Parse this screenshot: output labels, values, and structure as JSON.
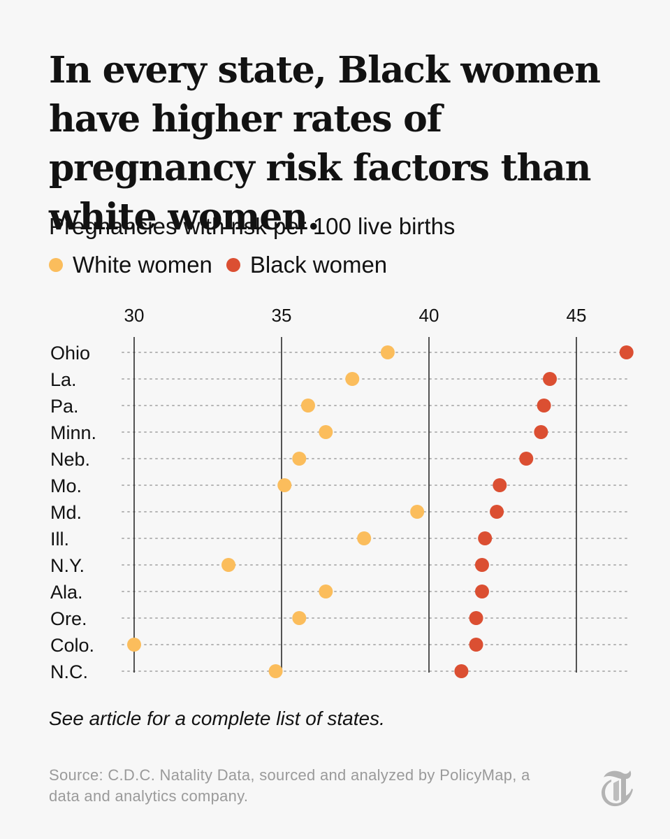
{
  "title": "In every state, Black women have higher rates of pregnancy risk factors than white women.",
  "subtitle": "Pregnancies with risk per 100 live births",
  "legend": {
    "white_label": "White women",
    "black_label": "Black women"
  },
  "colors": {
    "white": "#fbbd5c",
    "black": "#db4f32",
    "gridline": "#2a2a2a",
    "dotted": "#b5b5b5"
  },
  "footnote": "See article for a complete list of states.",
  "source": "Source: C.D.C. Natality Data, sourced and analyzed by PolicyMap, a data and analytics company.",
  "logo_icon": "nyt-logo-icon",
  "chart_data": {
    "type": "dot",
    "title": "Pregnancies with risk per 100 live births",
    "xlim": [
      30,
      47
    ],
    "ticks": [
      30,
      35,
      40,
      45
    ],
    "categories": [
      "Ohio",
      "La.",
      "Pa.",
      "Minn.",
      "Neb.",
      "Mo.",
      "Md.",
      "Ill.",
      "N.Y.",
      "Ala.",
      "Ore.",
      "Colo.",
      "N.C."
    ],
    "series": [
      {
        "name": "White women",
        "color": "#fbbd5c",
        "values": [
          38.6,
          37.4,
          35.9,
          36.5,
          35.6,
          35.1,
          39.6,
          37.8,
          33.2,
          36.5,
          35.6,
          30.0,
          34.8
        ]
      },
      {
        "name": "Black women",
        "color": "#db4f32",
        "values": [
          46.7,
          44.1,
          43.9,
          43.8,
          43.3,
          42.4,
          42.3,
          41.9,
          41.8,
          41.8,
          41.6,
          41.6,
          41.1
        ]
      }
    ]
  }
}
